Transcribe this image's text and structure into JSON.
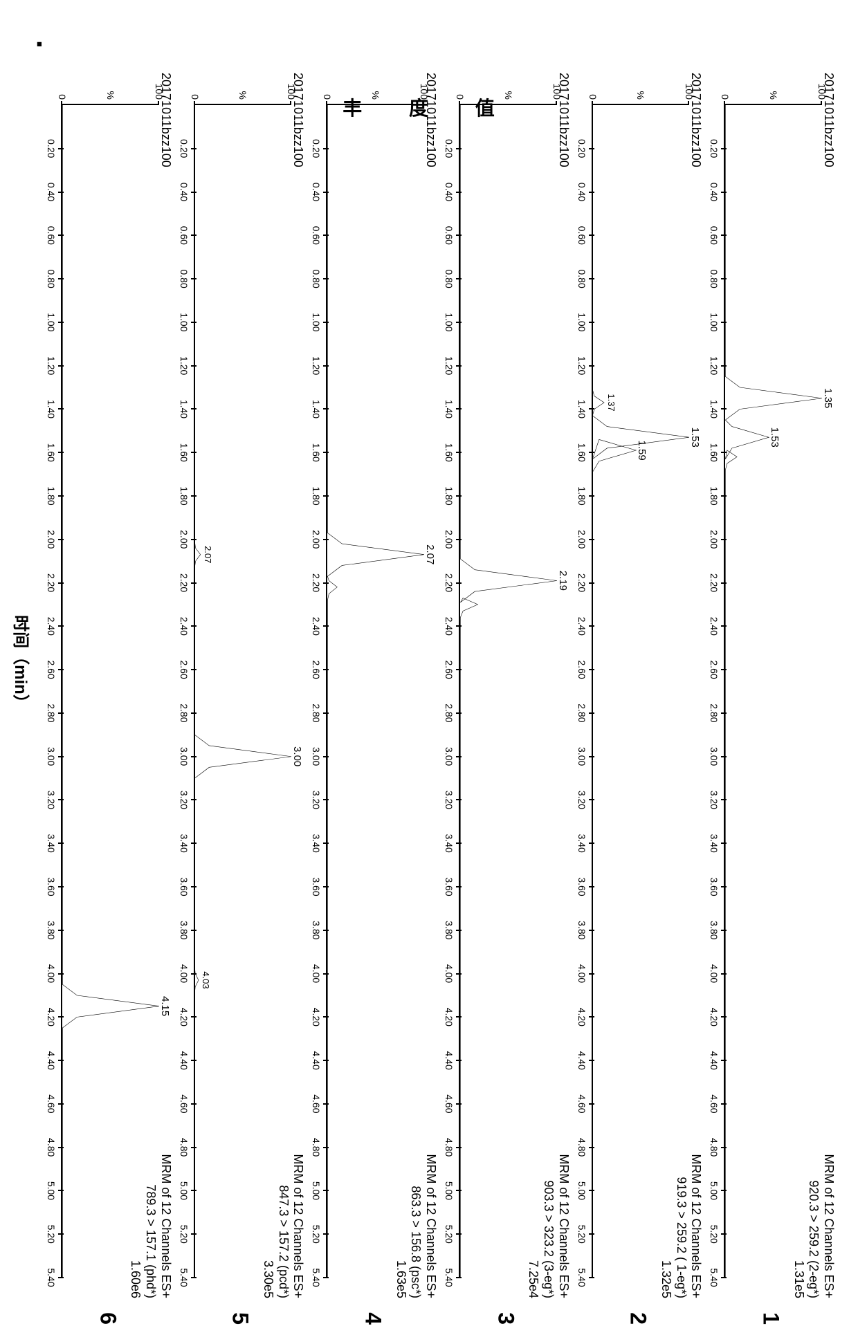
{
  "type": "chromatogram-stack",
  "background_color": "#ffffff",
  "line_color": "#000000",
  "font_family": "Arial",
  "y_axis_label": "丰 度 值",
  "x_axis_label": "时间（min）",
  "xlim": [
    0,
    5.4
  ],
  "x_ticks": [
    0.2,
    0.4,
    0.6,
    0.8,
    1.0,
    1.2,
    1.4,
    1.6,
    1.8,
    2.0,
    2.2,
    2.4,
    2.6,
    2.8,
    3.0,
    3.2,
    3.4,
    3.6,
    3.8,
    4.0,
    4.2,
    4.4,
    4.6,
    4.8,
    5.0,
    5.2,
    5.4
  ],
  "ylim": [
    0,
    100
  ],
  "y_ticks": [
    0,
    100
  ],
  "y_mid_label": "%",
  "title_fontsize": 18,
  "tick_fontsize": 14,
  "label_fontsize": 24,
  "panel_number_fontsize": 32,
  "panels": [
    {
      "number": "1",
      "file": "20171011bzz100",
      "info_line1": "MRM of 12 Channels ES+",
      "info_line2": "920.3 > 259.2 (2-eg*)",
      "info_line3": "1.31e5",
      "peaks": [
        {
          "rt": 1.35,
          "height": 100,
          "label": "1.35"
        },
        {
          "rt": 1.53,
          "height": 45,
          "label": "1.53"
        }
      ],
      "minor_peaks": [
        {
          "rt": 1.62,
          "height": 12
        }
      ]
    },
    {
      "number": "2",
      "file": "20171011bzz100",
      "info_line1": "MRM of 12 Channels ES+",
      "info_line2": "919.3 > 259.2 ( 1-eg*)",
      "info_line3": "1.32e5",
      "peaks": [
        {
          "rt": 1.53,
          "height": 100,
          "label": "1.53"
        },
        {
          "rt": 1.59,
          "height": 45,
          "label": "1.59"
        }
      ],
      "minor_peaks": [
        {
          "rt": 1.37,
          "height": 12,
          "label": "1.37"
        }
      ]
    },
    {
      "number": "3",
      "file": "20171011bzz100",
      "info_line1": "MRM of 12 Channels ES+",
      "info_line2": "903.3 > 323.2 (3-eg*)",
      "info_line3": "7.25e4",
      "peaks": [
        {
          "rt": 2.19,
          "height": 100,
          "label": "2.19"
        }
      ],
      "minor_peaks": [
        {
          "rt": 2.3,
          "height": 18
        }
      ]
    },
    {
      "number": "4",
      "file": "20171011bzz100",
      "info_line1": "MRM of 12 Channels ES+",
      "info_line2": "863.3 > 156.8 (psc*)",
      "info_line3": "1.63e5",
      "peaks": [
        {
          "rt": 2.07,
          "height": 100,
          "label": "2.07"
        }
      ],
      "minor_peaks": [
        {
          "rt": 2.22,
          "height": 10
        }
      ]
    },
    {
      "number": "5",
      "file": "20171011bzz100",
      "info_line1": "MRM of 12 Channels ES+",
      "info_line2": "847.3 > 157.2 (pcd*)",
      "info_line3": "3.30e5",
      "peaks": [
        {
          "rt": 3.0,
          "height": 100,
          "label": "3.00"
        }
      ],
      "minor_peaks": [
        {
          "rt": 2.07,
          "height": 6,
          "label": "2.07"
        },
        {
          "rt": 4.03,
          "height": 4,
          "label": "4.03"
        }
      ]
    },
    {
      "number": "6",
      "file": "20171011bzz100",
      "info_line1": "MRM of 12 Channels ES+",
      "info_line2": "789.3 > 157.1 (phd*)",
      "info_line3": "1.60e6",
      "peaks": [
        {
          "rt": 4.15,
          "height": 100,
          "label": "4.15"
        }
      ],
      "minor_peaks": []
    }
  ]
}
